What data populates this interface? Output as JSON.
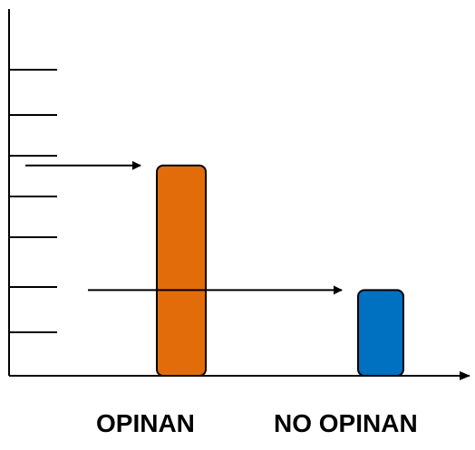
{
  "chart_data": {
    "type": "bar",
    "categories": [
      "OPINAN",
      "NO OPINAN"
    ],
    "values": [
      5.4,
      2.2
    ],
    "ylim": [
      0,
      9
    ],
    "ytick_count": 7,
    "grid": false,
    "colors": [
      "#E36C0A",
      "#0070C0"
    ],
    "annotations": [
      {
        "type": "arrow",
        "points_to": "OPINAN",
        "y": 5.4
      },
      {
        "type": "arrow",
        "points_to": "NO OPINAN",
        "y": 2.2
      }
    ]
  }
}
